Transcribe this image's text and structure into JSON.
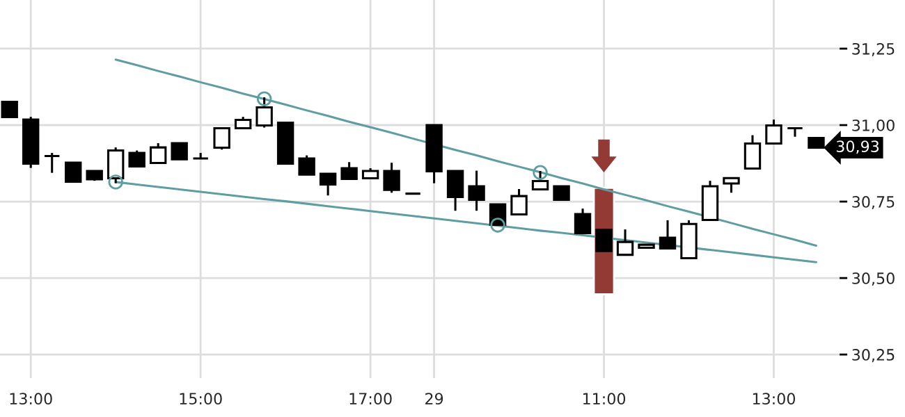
{
  "chart_data": {
    "type": "candlestick",
    "categories": [
      null,
      "13:00",
      null,
      null,
      null,
      null,
      null,
      null,
      null,
      "15:00",
      null,
      null,
      null,
      null,
      null,
      null,
      null,
      "17:00",
      null,
      null,
      "29",
      null,
      null,
      null,
      null,
      null,
      null,
      null,
      "11:00",
      null,
      null,
      null,
      null,
      null,
      null,
      null,
      "13:00",
      null,
      null
    ],
    "ohlc": [
      [
        31.076,
        31.076,
        31.026,
        31.026
      ],
      [
        31.018,
        31.027,
        30.86,
        30.874
      ],
      [
        30.899,
        30.909,
        30.844,
        30.899
      ],
      [
        30.877,
        30.877,
        30.815,
        30.815
      ],
      [
        30.85,
        30.85,
        30.818,
        30.823
      ],
      [
        30.826,
        30.927,
        30.81,
        30.917
      ],
      [
        30.909,
        30.917,
        30.865,
        30.865
      ],
      [
        30.876,
        30.941,
        30.876,
        30.927
      ],
      [
        30.941,
        30.941,
        30.888,
        30.888
      ],
      [
        30.891,
        30.909,
        30.891,
        30.891
      ],
      [
        30.926,
        30.99,
        30.92,
        30.99
      ],
      [
        30.99,
        31.027,
        30.99,
        31.017
      ],
      [
        30.999,
        31.091,
        30.992,
        31.058
      ],
      [
        31.008,
        31.008,
        30.874,
        30.874
      ],
      [
        30.891,
        30.901,
        30.838,
        30.838
      ],
      [
        30.841,
        30.841,
        30.77,
        30.806
      ],
      [
        30.859,
        30.879,
        30.824,
        30.824
      ],
      [
        30.826,
        30.859,
        30.826,
        30.85
      ],
      [
        30.85,
        30.877,
        30.779,
        30.788
      ],
      [
        30.776,
        30.776,
        30.776,
        30.776
      ],
      [
        31.0,
        31.0,
        30.81,
        30.849
      ],
      [
        30.85,
        30.85,
        30.72,
        30.765
      ],
      [
        30.8,
        30.851,
        30.72,
        30.756
      ],
      [
        30.741,
        30.741,
        30.674,
        30.674
      ],
      [
        30.708,
        30.791,
        30.708,
        30.768
      ],
      [
        30.79,
        30.85,
        30.79,
        30.817
      ],
      [
        30.8,
        30.8,
        30.756,
        30.756
      ],
      [
        30.709,
        30.727,
        30.647,
        30.647
      ],
      [
        30.658,
        30.658,
        30.588,
        30.588
      ],
      [
        30.576,
        30.659,
        30.576,
        30.618
      ],
      [
        30.599,
        30.609,
        30.599,
        30.609
      ],
      [
        30.632,
        30.689,
        30.597,
        30.597
      ],
      [
        30.565,
        30.689,
        30.565,
        30.677
      ],
      [
        30.69,
        30.818,
        30.69,
        30.8
      ],
      [
        30.809,
        30.827,
        30.779,
        30.827
      ],
      [
        30.858,
        30.967,
        30.858,
        30.94
      ],
      [
        30.94,
        31.018,
        30.94,
        30.999
      ],
      [
        30.99,
        30.99,
        30.962,
        30.99
      ],
      [
        30.958,
        30.958,
        30.926,
        30.926
      ]
    ],
    "series": [
      {
        "type": "line",
        "color": "#5e9ea3",
        "values": [
          null,
          null,
          null,
          null,
          null,
          31.214,
          31.196,
          31.177,
          31.159,
          31.14,
          31.122,
          31.103,
          31.085,
          31.067,
          31.048,
          31.03,
          31.011,
          30.993,
          30.975,
          30.956,
          null,
          30.919,
          30.901,
          30.882,
          30.864,
          30.846,
          30.827,
          30.809,
          30.79,
          30.772,
          30.754,
          30.735,
          30.717,
          null,
          30.68,
          30.661,
          30.643,
          30.625,
          30.606
        ]
      },
      {
        "type": "line",
        "color": "#5e9ea3",
        "values": [
          null,
          null,
          null,
          null,
          null,
          30.814,
          30.806,
          30.798,
          30.79,
          30.782,
          30.774,
          30.766,
          30.758,
          30.751,
          30.743,
          30.735,
          30.727,
          30.719,
          30.711,
          30.703,
          30.695,
          30.687,
          30.679,
          30.671,
          30.663,
          30.655,
          30.648,
          30.64,
          null,
          30.624,
          30.616,
          null,
          null,
          30.592,
          30.584,
          30.576,
          30.568,
          30.56,
          30.552
        ]
      },
      {
        "type": "scatter",
        "color": "#5e9ea3",
        "marker": "circle",
        "values": [
          null,
          null,
          null,
          null,
          null,
          30.814,
          null,
          null,
          null,
          null,
          null,
          null,
          31.086,
          null,
          null,
          null,
          null,
          null,
          null,
          null,
          null,
          null,
          null,
          30.673,
          null,
          30.845,
          null,
          null,
          null,
          null,
          null,
          null,
          null,
          null,
          null,
          null,
          null,
          null,
          null
        ]
      },
      {
        "type": "bar",
        "color": "#943a35",
        "base": [
          null,
          null,
          null,
          null,
          null,
          null,
          null,
          null,
          null,
          null,
          null,
          null,
          null,
          null,
          null,
          null,
          null,
          null,
          null,
          null,
          null,
          null,
          null,
          null,
          null,
          null,
          null,
          null,
          30.447,
          null,
          null,
          null,
          null,
          null,
          null,
          null,
          null,
          null,
          null
        ],
        "values": [
          null,
          null,
          null,
          null,
          null,
          null,
          null,
          null,
          null,
          null,
          null,
          null,
          null,
          null,
          null,
          null,
          null,
          null,
          null,
          null,
          null,
          null,
          null,
          null,
          null,
          null,
          null,
          null,
          0.348,
          null,
          null,
          null,
          null,
          null,
          null,
          null,
          null,
          null,
          null
        ]
      }
    ],
    "annotations": [
      "30,93"
    ],
    "ylim": [
      30.173,
      31.409
    ],
    "yticks": [
      {
        "value": 30.25,
        "label": "30,25"
      },
      {
        "value": 30.5,
        "label": "30,50"
      },
      {
        "value": 30.75,
        "label": "30,75"
      },
      {
        "value": 31.0,
        "label": "31,00"
      },
      {
        "value": 31.25,
        "label": "31,25"
      }
    ],
    "grid": true
  }
}
